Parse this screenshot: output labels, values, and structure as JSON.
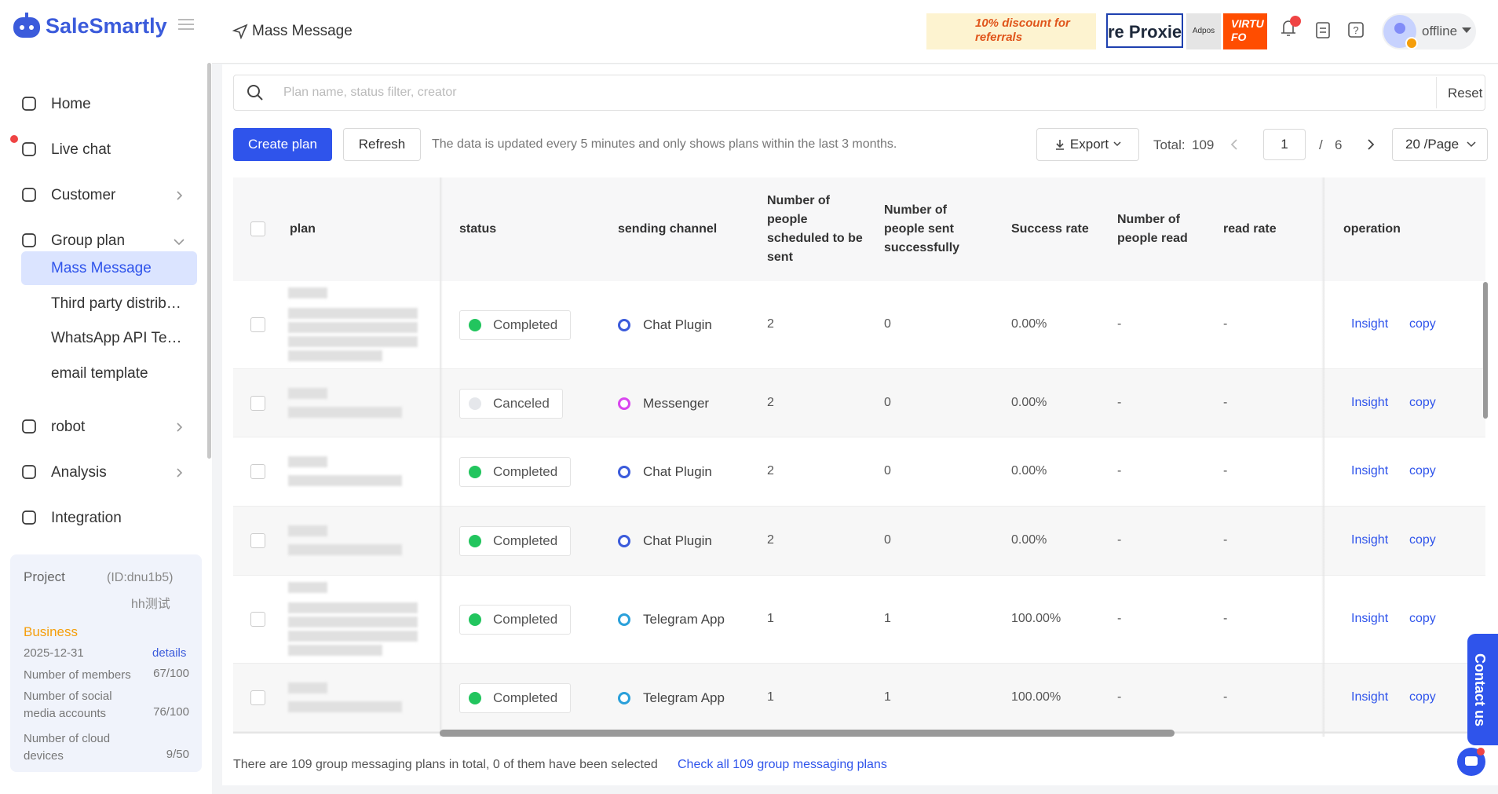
{
  "sidebar": {
    "brand": "SaleSmartly",
    "nav_top": [
      "Home",
      "Live chat",
      "Customer",
      "Group plan"
    ],
    "submenu": [
      "Mass Message",
      "Third party distrib…",
      "WhatsApp API Te…",
      "email template"
    ],
    "nav_bottom": [
      "robot",
      "Analysis",
      "Integration"
    ],
    "project": {
      "label": "Project",
      "id": "(ID:dnu1b5)",
      "name": "hh测试",
      "plan": "Business",
      "expiry": "2025-12-31",
      "details": "details",
      "stats": [
        {
          "label": "Number of members",
          "value": "67/100"
        },
        {
          "label": "Number of social media accounts",
          "value": "76/100"
        },
        {
          "label": "Number of cloud devices",
          "value": "9/50"
        }
      ]
    }
  },
  "header": {
    "title": "Mass Message",
    "ads": [
      "10% discount for referrals",
      "re Proxies",
      "Adpos",
      "VIRTU FO"
    ],
    "status": "offline"
  },
  "search": {
    "placeholder": "Plan name, status filter, creator",
    "reset": "Reset"
  },
  "toolbar": {
    "create": "Create plan",
    "refresh": "Refresh",
    "note": "The data is updated every 5 minutes and only shows plans within the last 3 months.",
    "export": "Export",
    "total_label": "Total:",
    "total": 109,
    "page": 1,
    "separator": "/",
    "pages": 6,
    "page_size": "20 /Page"
  },
  "table": {
    "columns": [
      "plan",
      "status",
      "sending channel",
      "Number of people scheduled to be sent",
      "Number of people sent successfully",
      "Success rate",
      "Number of people read",
      "read rate",
      "operation"
    ],
    "actions": [
      "Insight",
      "copy"
    ],
    "rows": [
      {
        "status": "Completed",
        "dot_color": "#22c55e",
        "channel": "Chat Plugin",
        "icon_color": "#3b5bdb",
        "scheduled": 2,
        "sent": 0,
        "success_rate": "0.00%",
        "read": "-",
        "read_rate": "-"
      },
      {
        "status": "Canceled",
        "dot_color": "#e5e7eb",
        "channel": "Messenger",
        "icon_color": "#d946ef",
        "scheduled": 2,
        "sent": 0,
        "success_rate": "0.00%",
        "read": "-",
        "read_rate": "-"
      },
      {
        "status": "Completed",
        "dot_color": "#22c55e",
        "channel": "Chat Plugin",
        "icon_color": "#3b5bdb",
        "scheduled": 2,
        "sent": 0,
        "success_rate": "0.00%",
        "read": "-",
        "read_rate": "-"
      },
      {
        "status": "Completed",
        "dot_color": "#22c55e",
        "channel": "Chat Plugin",
        "icon_color": "#3b5bdb",
        "scheduled": 2,
        "sent": 0,
        "success_rate": "0.00%",
        "read": "-",
        "read_rate": "-"
      },
      {
        "status": "Completed",
        "dot_color": "#22c55e",
        "channel": "Telegram App",
        "icon_color": "#2aa0da",
        "scheduled": 1,
        "sent": 1,
        "success_rate": "100.00%",
        "read": "-",
        "read_rate": "-"
      },
      {
        "status": "Completed",
        "dot_color": "#22c55e",
        "channel": "Telegram App",
        "icon_color": "#2aa0da",
        "scheduled": 1,
        "sent": 1,
        "success_rate": "100.00%",
        "read": "-",
        "read_rate": "-"
      }
    ]
  },
  "footer": {
    "summary": "There are 109 group messaging plans in total, 0 of them have been selected",
    "link": "Check all 109 group messaging plans"
  },
  "contact": "Contact us"
}
